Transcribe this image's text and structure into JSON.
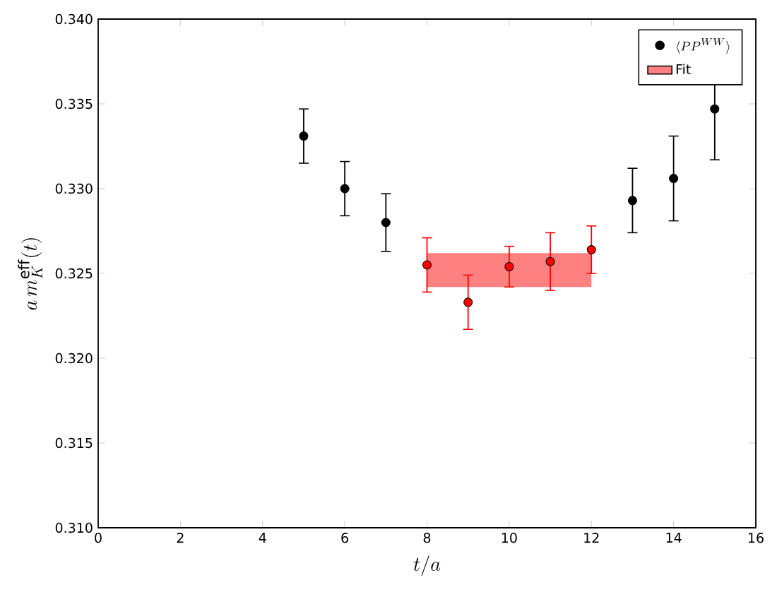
{
  "chart_data": {
    "type": "scatter",
    "xlabel": "t/a",
    "ylabel": "a\\,m_K^{\\mathrm{eff}}(t)",
    "xlim": [
      0,
      16
    ],
    "ylim": [
      0.31,
      0.34
    ],
    "xticks": [
      0,
      2,
      4,
      6,
      8,
      10,
      12,
      14,
      16
    ],
    "yticks": [
      {
        "value": 0.31,
        "label": "0.310"
      },
      {
        "value": 0.315,
        "label": "0.315"
      },
      {
        "value": 0.32,
        "label": "0.320"
      },
      {
        "value": 0.325,
        "label": "0.325"
      },
      {
        "value": 0.33,
        "label": "0.330"
      },
      {
        "value": 0.335,
        "label": "0.335"
      },
      {
        "value": 0.34,
        "label": "0.340"
      }
    ],
    "marker": "circle",
    "legend": "top right",
    "grid": false,
    "series": [
      {
        "name": "\\langle PP^{WW}\\rangle",
        "color": "#000000",
        "x": [
          5,
          6,
          7,
          13,
          14,
          15
        ],
        "values": [
          0.3331,
          0.33,
          0.328,
          0.3293,
          0.3306,
          0.3347
        ],
        "errors": [
          0.0016,
          0.0016,
          0.0017,
          0.0019,
          0.0025,
          0.003
        ]
      },
      {
        "color": "#ff0000",
        "x": [
          8,
          9,
          10,
          11,
          12
        ],
        "values": [
          0.3255,
          0.3233,
          0.3254,
          0.3257,
          0.3264
        ],
        "errors": [
          0.0016,
          0.0016,
          0.0012,
          0.0017,
          0.0014
        ]
      },
      {
        "name": "Fit",
        "type": "line",
        "color": "#ff8080",
        "x": [
          8,
          12
        ],
        "values": [
          null,
          null
        ],
        "lower": [
          0.3242,
          0.3242
        ],
        "upper": [
          0.3262,
          0.3262
        ]
      }
    ]
  }
}
